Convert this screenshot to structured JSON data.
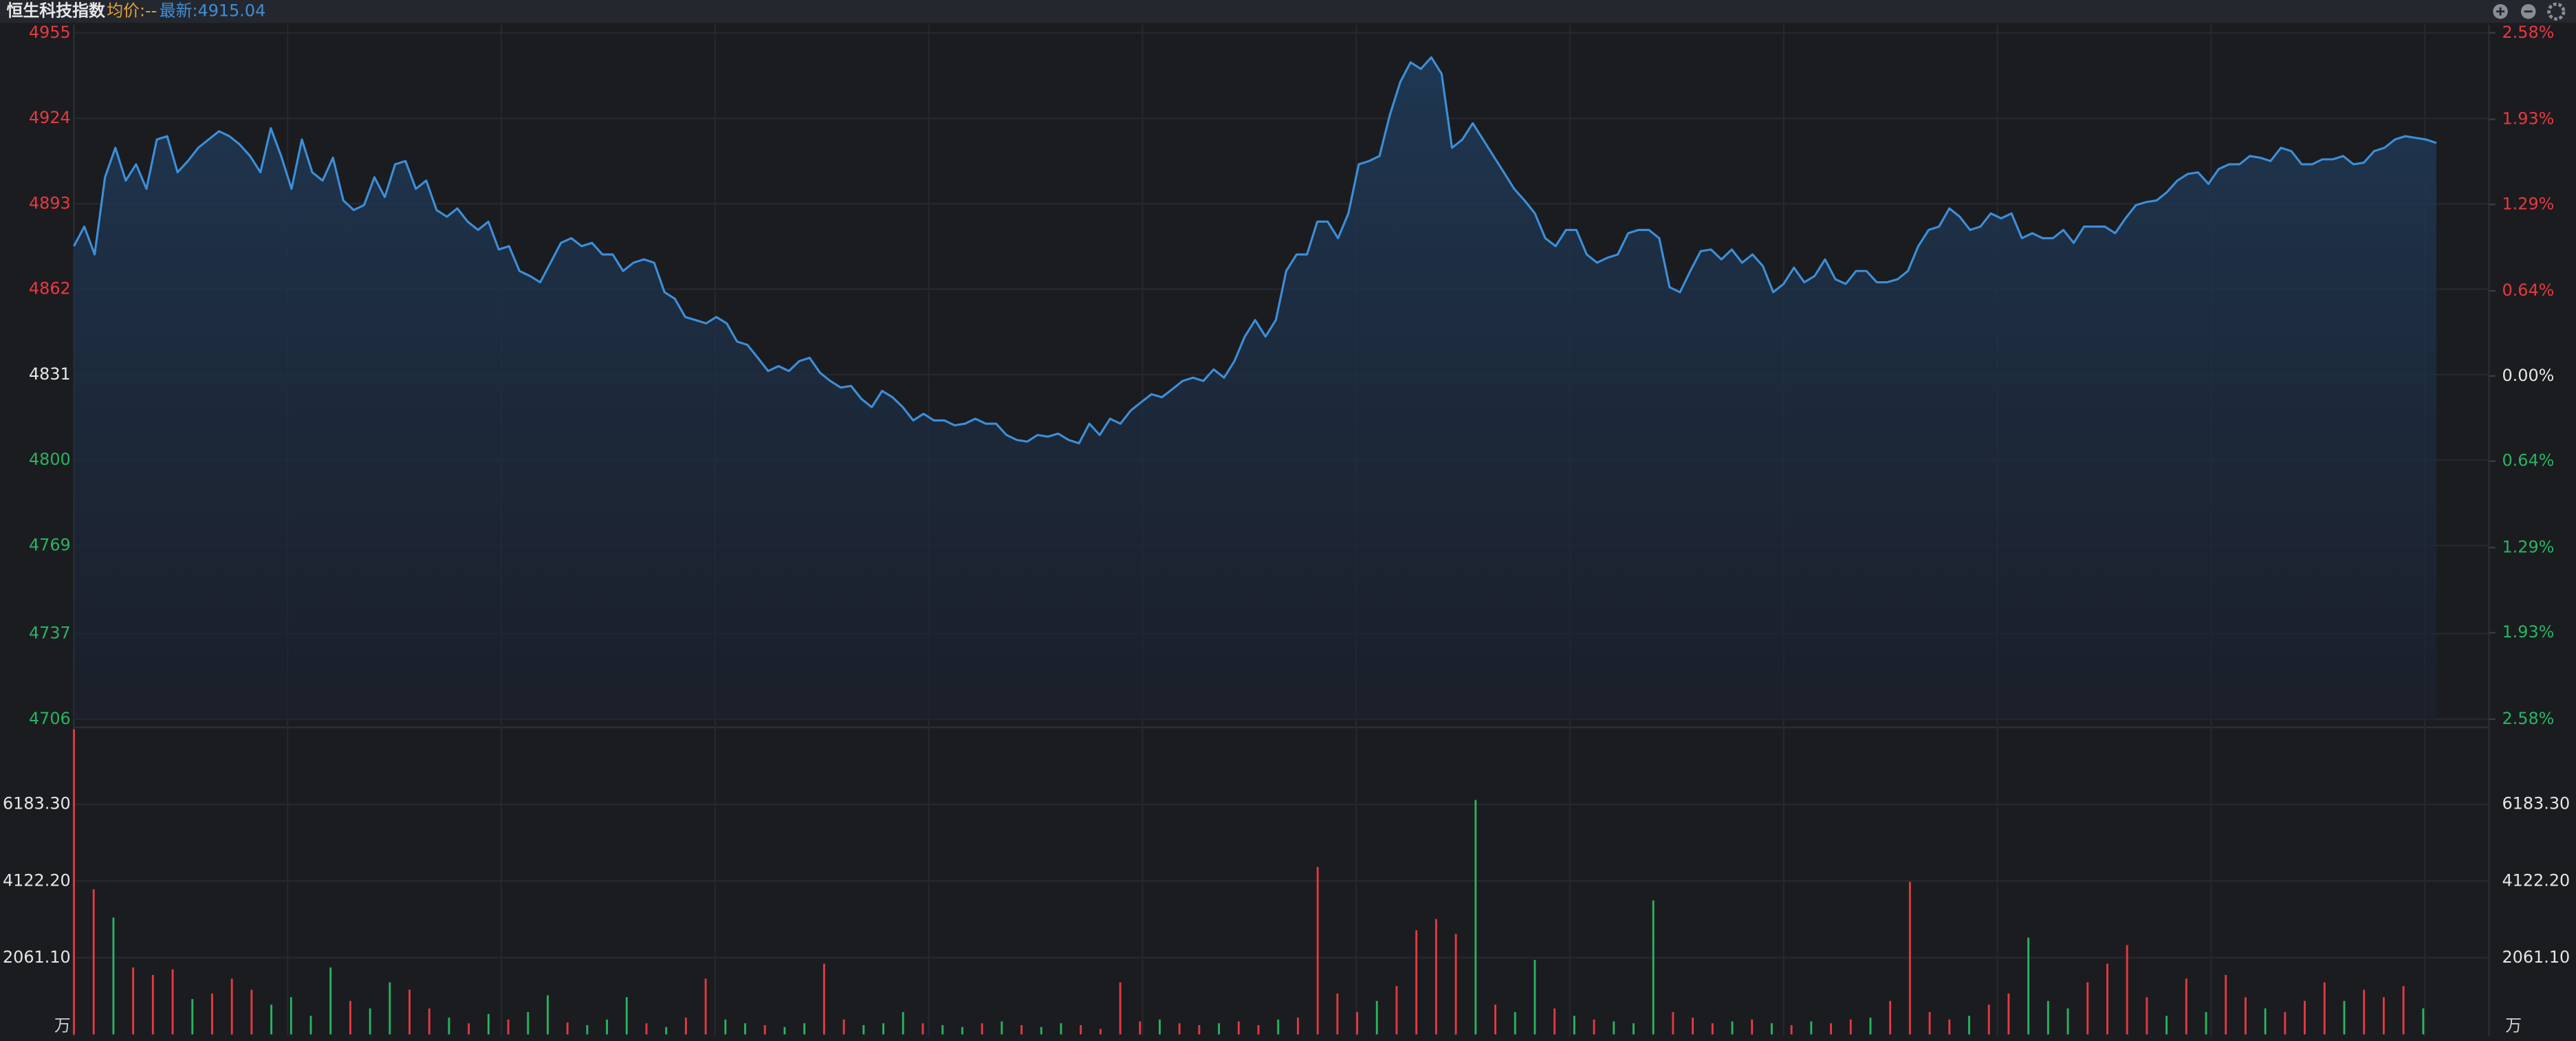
{
  "header": {
    "title": "恒生科技指数",
    "avg": "均价:--",
    "latest": "最新:4915.04"
  },
  "chart_data": [
    {
      "type": "line",
      "series": [
        {
          "color": "#3d8fd9",
          "values": [
            4877.6,
            4884.7,
            4874.6,
            4902.6,
            4913.3,
            4901.4,
            4907.3,
            4898.4,
            4916.3,
            4917.5,
            4904.4,
            4908.5,
            4913.3,
            4916.3,
            4919.3,
            4917.5,
            4914.5,
            4910.3,
            4904.4,
            4920.4,
            4910.3,
            4898.4,
            4916.3,
            4904.4,
            4901.4,
            4909.7,
            4894.2,
            4890.7,
            4892.5,
            4902.6,
            4895.4,
            4907.3,
            4908.5,
            4898.4,
            4901.4,
            4890.7,
            4888.3,
            4891.3,
            4886.5,
            4883.5,
            4886.5,
            4876.4,
            4877.6,
            4868.6,
            4866.8,
            4864.5,
            4871.6,
            4878.8,
            4880.5,
            4877.6,
            4878.8,
            4874.6,
            4874.6,
            4868.6,
            4871.6,
            4872.8,
            4871.6,
            4860.9,
            4858.5,
            4851.9,
            4850.8,
            4849.6,
            4851.9,
            4849.6,
            4843.0,
            4841.8,
            4837.1,
            4832.3,
            4834.1,
            4832.3,
            4835.9,
            4837.1,
            4831.7,
            4828.7,
            4826.3,
            4826.9,
            4822.2,
            4819.2,
            4825.1,
            4822.8,
            4819.2,
            4814.4,
            4816.8,
            4814.4,
            4814.4,
            4812.6,
            4813.2,
            4815.0,
            4813.2,
            4813.2,
            4809.1,
            4807.3,
            4806.7,
            4809.1,
            4808.5,
            4809.6,
            4807.3,
            4806.1,
            4813.2,
            4809.1,
            4815.0,
            4813.2,
            4818.0,
            4821.0,
            4823.9,
            4822.8,
            4825.7,
            4828.7,
            4829.9,
            4828.7,
            4832.9,
            4829.9,
            4835.9,
            4844.8,
            4850.8,
            4844.8,
            4850.8,
            4868.6,
            4874.6,
            4874.6,
            4886.5,
            4886.5,
            4880.5,
            4889.5,
            4907.3,
            4908.5,
            4910.3,
            4925.2,
            4937.1,
            4944.3,
            4941.9,
            4946.1,
            4940.1,
            4913.3,
            4916.3,
            4922.2,
            4916.3,
            4910.3,
            4904.4,
            4898.4,
            4894.2,
            4889.5,
            4880.5,
            4877.6,
            4883.5,
            4883.5,
            4874.6,
            4871.6,
            4873.4,
            4874.6,
            4882.3,
            4883.5,
            4883.5,
            4880.5,
            4862.7,
            4860.9,
            4868.6,
            4875.8,
            4876.4,
            4872.8,
            4876.4,
            4871.6,
            4874.6,
            4870.4,
            4860.9,
            4863.9,
            4869.8,
            4864.5,
            4866.8,
            4872.8,
            4865.6,
            4863.9,
            4868.6,
            4868.6,
            4864.5,
            4864.5,
            4865.6,
            4868.6,
            4877.6,
            4883.5,
            4884.7,
            4891.3,
            4888.3,
            4883.5,
            4884.7,
            4889.5,
            4887.7,
            4889.5,
            4880.5,
            4882.3,
            4880.5,
            4880.5,
            4883.5,
            4878.8,
            4884.7,
            4884.7,
            4884.7,
            4882.3,
            4887.7,
            4892.5,
            4893.6,
            4894.2,
            4897.2,
            4901.4,
            4903.8,
            4904.4,
            4900.2,
            4905.6,
            4907.3,
            4907.3,
            4910.3,
            4909.7,
            4908.5,
            4913.3,
            4912.1,
            4907.3,
            4907.3,
            4909.1,
            4909.1,
            4910.3,
            4907.3,
            4907.9,
            4912.1,
            4913.3,
            4916.3,
            4917.5,
            4916.9,
            4916.3,
            4915.04
          ]
        }
      ],
      "ylim": [
        4706,
        4955
      ],
      "yticks": [
        4955,
        4924,
        4893,
        4862,
        4831,
        4800,
        4769,
        4737,
        4706
      ],
      "y2lim": [
        -2.58,
        2.58
      ],
      "y2ticks": [
        {
          "value": 2.58,
          "label": "2.58%"
        },
        {
          "value": 1.93,
          "label": "1.93%"
        },
        {
          "value": 1.29,
          "label": "1.29%"
        },
        {
          "value": 0.64,
          "label": "0.64%"
        },
        {
          "value": 0,
          "label": "0.00%"
        },
        {
          "value": -0.64,
          "label": "0.64%"
        },
        {
          "value": -1.29,
          "label": "1.29%"
        },
        {
          "value": -1.93,
          "label": "1.93%"
        },
        {
          "value": -2.58,
          "label": "2.58%"
        }
      ]
    },
    {
      "type": "bar",
      "unit": "万",
      "values": [
        8200,
        3900,
        3140,
        1800,
        1600,
        1750,
        950,
        1100,
        1500,
        1200,
        800,
        1000,
        500,
        1800,
        900,
        700,
        1400,
        1200,
        700,
        450,
        300,
        550,
        400,
        600,
        1050,
        320,
        250,
        400,
        1000,
        300,
        200,
        450,
        1500,
        400,
        300,
        250,
        200,
        300,
        1900,
        400,
        250,
        300,
        600,
        300,
        250,
        200,
        300,
        350,
        250,
        200,
        300,
        250,
        150,
        1400,
        350,
        400,
        300,
        250,
        300,
        350,
        250,
        400,
        450,
        4500,
        1100,
        600,
        900,
        1300,
        2800,
        3100,
        2700,
        6300,
        800,
        600,
        2000,
        700,
        500,
        400,
        350,
        300,
        3600,
        600,
        450,
        300,
        350,
        400,
        300,
        250,
        350,
        300,
        400,
        450,
        900,
        4100,
        600,
        400,
        500,
        800,
        1100,
        2600,
        900,
        700,
        1400,
        1900,
        2400,
        1000,
        500,
        1500,
        600,
        1600,
        1000,
        700,
        600,
        900,
        1400,
        900,
        1200,
        1000,
        1300,
        700
      ],
      "colors": [
        "#e8393f",
        "#e8393f",
        "#27b561",
        "#e8393f",
        "#e8393f",
        "#e8393f",
        "#27b561",
        "#e8393f",
        "#e8393f",
        "#e8393f",
        "#27b561",
        "#27b561",
        "#27b561",
        "#27b561",
        "#e8393f",
        "#27b561",
        "#27b561",
        "#e8393f",
        "#e8393f",
        "#27b561",
        "#e8393f",
        "#27b561",
        "#e8393f",
        "#27b561",
        "#27b561",
        "#e8393f",
        "#27b561",
        "#27b561",
        "#27b561",
        "#e8393f",
        "#27b561",
        "#e8393f",
        "#e8393f",
        "#27b561",
        "#27b561",
        "#e8393f",
        "#27b561",
        "#27b561",
        "#e8393f",
        "#e8393f",
        "#27b561",
        "#27b561",
        "#27b561",
        "#e8393f",
        "#27b561",
        "#27b561",
        "#e8393f",
        "#27b561",
        "#e8393f",
        "#27b561",
        "#27b561",
        "#e8393f",
        "#e8393f",
        "#e8393f",
        "#e8393f",
        "#27b561",
        "#e8393f",
        "#e8393f",
        "#27b561",
        "#e8393f",
        "#e8393f",
        "#27b561",
        "#e8393f",
        "#e8393f",
        "#e8393f",
        "#e8393f",
        "#27b561",
        "#e8393f",
        "#e8393f",
        "#e8393f",
        "#e8393f",
        "#27b561",
        "#e8393f",
        "#27b561",
        "#27b561",
        "#e8393f",
        "#27b561",
        "#e8393f",
        "#27b561",
        "#27b561",
        "#27b561",
        "#e8393f",
        "#e8393f",
        "#e8393f",
        "#27b561",
        "#e8393f",
        "#27b561",
        "#e8393f",
        "#27b561",
        "#e8393f",
        "#e8393f",
        "#27b561",
        "#e8393f",
        "#e8393f",
        "#e8393f",
        "#e8393f",
        "#27b561",
        "#e8393f",
        "#e8393f",
        "#27b561",
        "#27b561",
        "#27b561",
        "#e8393f",
        "#e8393f",
        "#e8393f",
        "#e8393f",
        "#27b561",
        "#e8393f",
        "#27b561",
        "#e8393f",
        "#e8393f",
        "#27b561",
        "#e8393f",
        "#e8393f",
        "#e8393f",
        "#27b561",
        "#e8393f",
        "#e8393f",
        "#e8393f",
        "#27b561"
      ],
      "ylim": [
        0,
        8250
      ],
      "yticks": [
        {
          "value": 2061.1,
          "label": "2061.10"
        },
        {
          "value": 4122.2,
          "label": "4122.20"
        },
        {
          "value": 6183.3,
          "label": "6183.30"
        }
      ]
    }
  ]
}
